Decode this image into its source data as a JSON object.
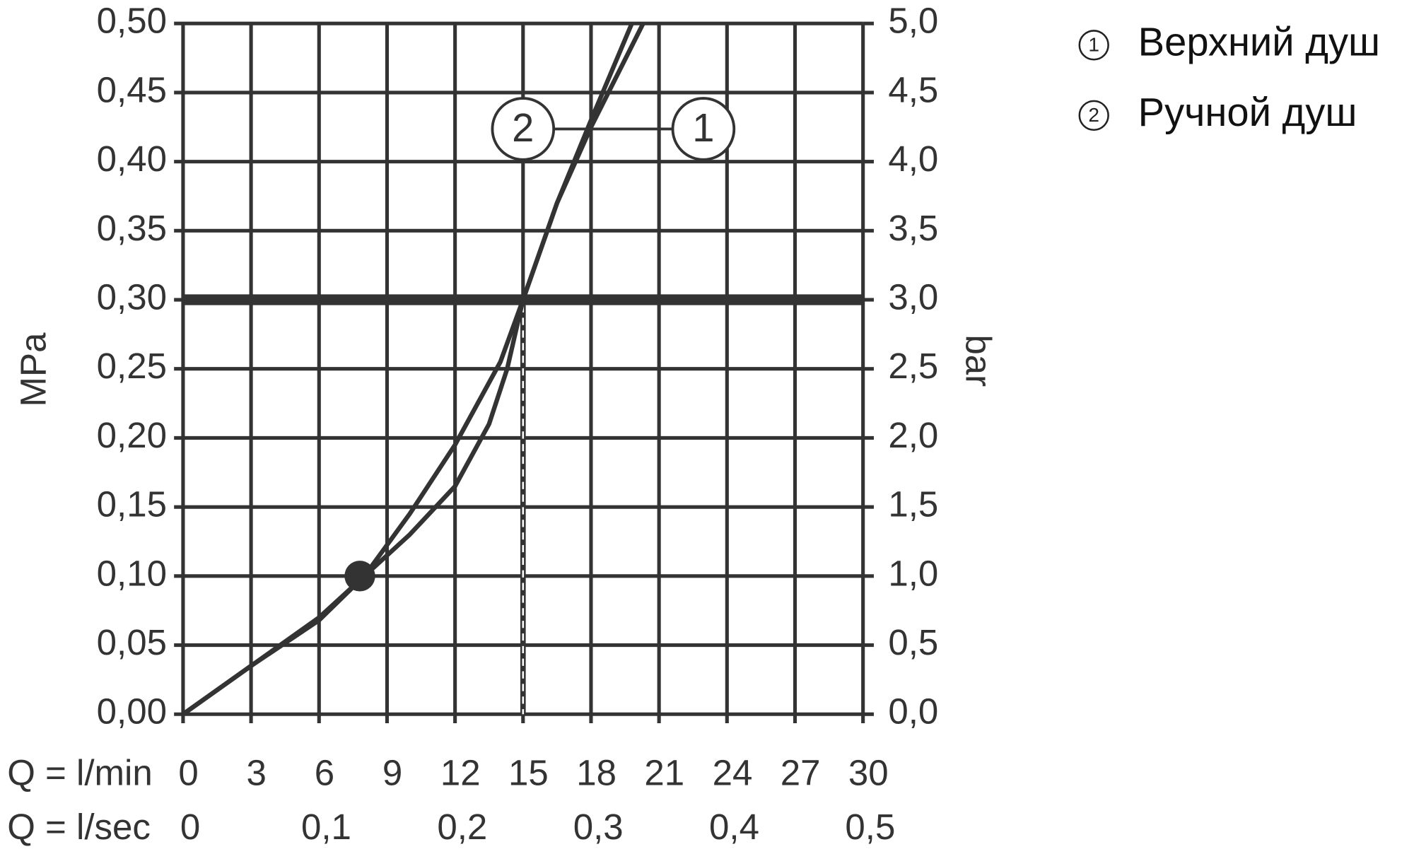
{
  "chart_data": {
    "type": "line",
    "y_label": "MPa",
    "y2_label": "bar",
    "x_label": "Q = l/min",
    "x2_label": "Q = l/sec",
    "xlim": [
      0,
      30
    ],
    "xticks": [
      0,
      3,
      6,
      9,
      12,
      15,
      18,
      21,
      24,
      27,
      30
    ],
    "x2lim": [
      0,
      0.5
    ],
    "x2ticks": [
      0,
      {
        "value": 0.1,
        "label": "0,1"
      },
      {
        "value": 0.2,
        "label": "0,2"
      },
      {
        "value": 0.3,
        "label": "0,3"
      },
      {
        "value": 0.4,
        "label": "0,4"
      },
      {
        "value": 0.5,
        "label": "0,5"
      }
    ],
    "ylim": [
      0,
      0.5
    ],
    "yticks": [
      {
        "value": 0,
        "label": "0,00"
      },
      {
        "value": 0.05,
        "label": "0,05"
      },
      {
        "value": 0.1,
        "label": "0,10"
      },
      {
        "value": 0.15,
        "label": "0,15"
      },
      {
        "value": 0.2,
        "label": "0,20"
      },
      {
        "value": 0.25,
        "label": "0,25"
      },
      {
        "value": 0.3,
        "label": "0,30"
      },
      {
        "value": 0.35,
        "label": "0,35"
      },
      {
        "value": 0.4,
        "label": "0,40"
      },
      {
        "value": 0.45,
        "label": "0,45"
      },
      {
        "value": 0.5,
        "label": "0,50"
      }
    ],
    "y2lim": [
      0,
      5
    ],
    "y2ticks": [
      {
        "value": 0,
        "label": "0,0"
      },
      {
        "value": 0.5,
        "label": "0,5"
      },
      {
        "value": 1,
        "label": "1,0"
      },
      {
        "value": 1.5,
        "label": "1,5"
      },
      {
        "value": 2,
        "label": "2,0"
      },
      {
        "value": 2.5,
        "label": "2,5"
      },
      {
        "value": 3,
        "label": "3,0"
      },
      {
        "value": 3.5,
        "label": "3,5"
      },
      {
        "value": 4,
        "label": "4,0"
      },
      {
        "value": 4.5,
        "label": "4,5"
      },
      {
        "value": 5,
        "label": "5,0"
      }
    ],
    "grid": true,
    "color": "#333333",
    "series": [
      {
        "name": "Верхний душ",
        "label": "1",
        "color": "#333333",
        "x": [
          0,
          3,
          6,
          8,
          10,
          12,
          14,
          15,
          16.5,
          18,
          19.8
        ],
        "values": [
          0,
          0.035,
          0.07,
          0.1,
          0.145,
          0.195,
          0.255,
          0.3,
          0.37,
          0.43,
          0.5
        ]
      },
      {
        "name": "Ручной душ",
        "label": "2",
        "color": "#333333",
        "x": [
          0,
          3,
          6,
          8,
          10,
          12,
          13.5,
          14.3,
          15,
          16.5,
          18,
          20.3
        ],
        "values": [
          0,
          0.035,
          0.068,
          0.1,
          0.13,
          0.165,
          0.21,
          0.25,
          0.3,
          0.37,
          0.425,
          0.5
        ]
      }
    ],
    "reference_y": 0.3,
    "reference_x": 15,
    "point": {
      "x": 7.8,
      "y": 0.1
    }
  }
}
